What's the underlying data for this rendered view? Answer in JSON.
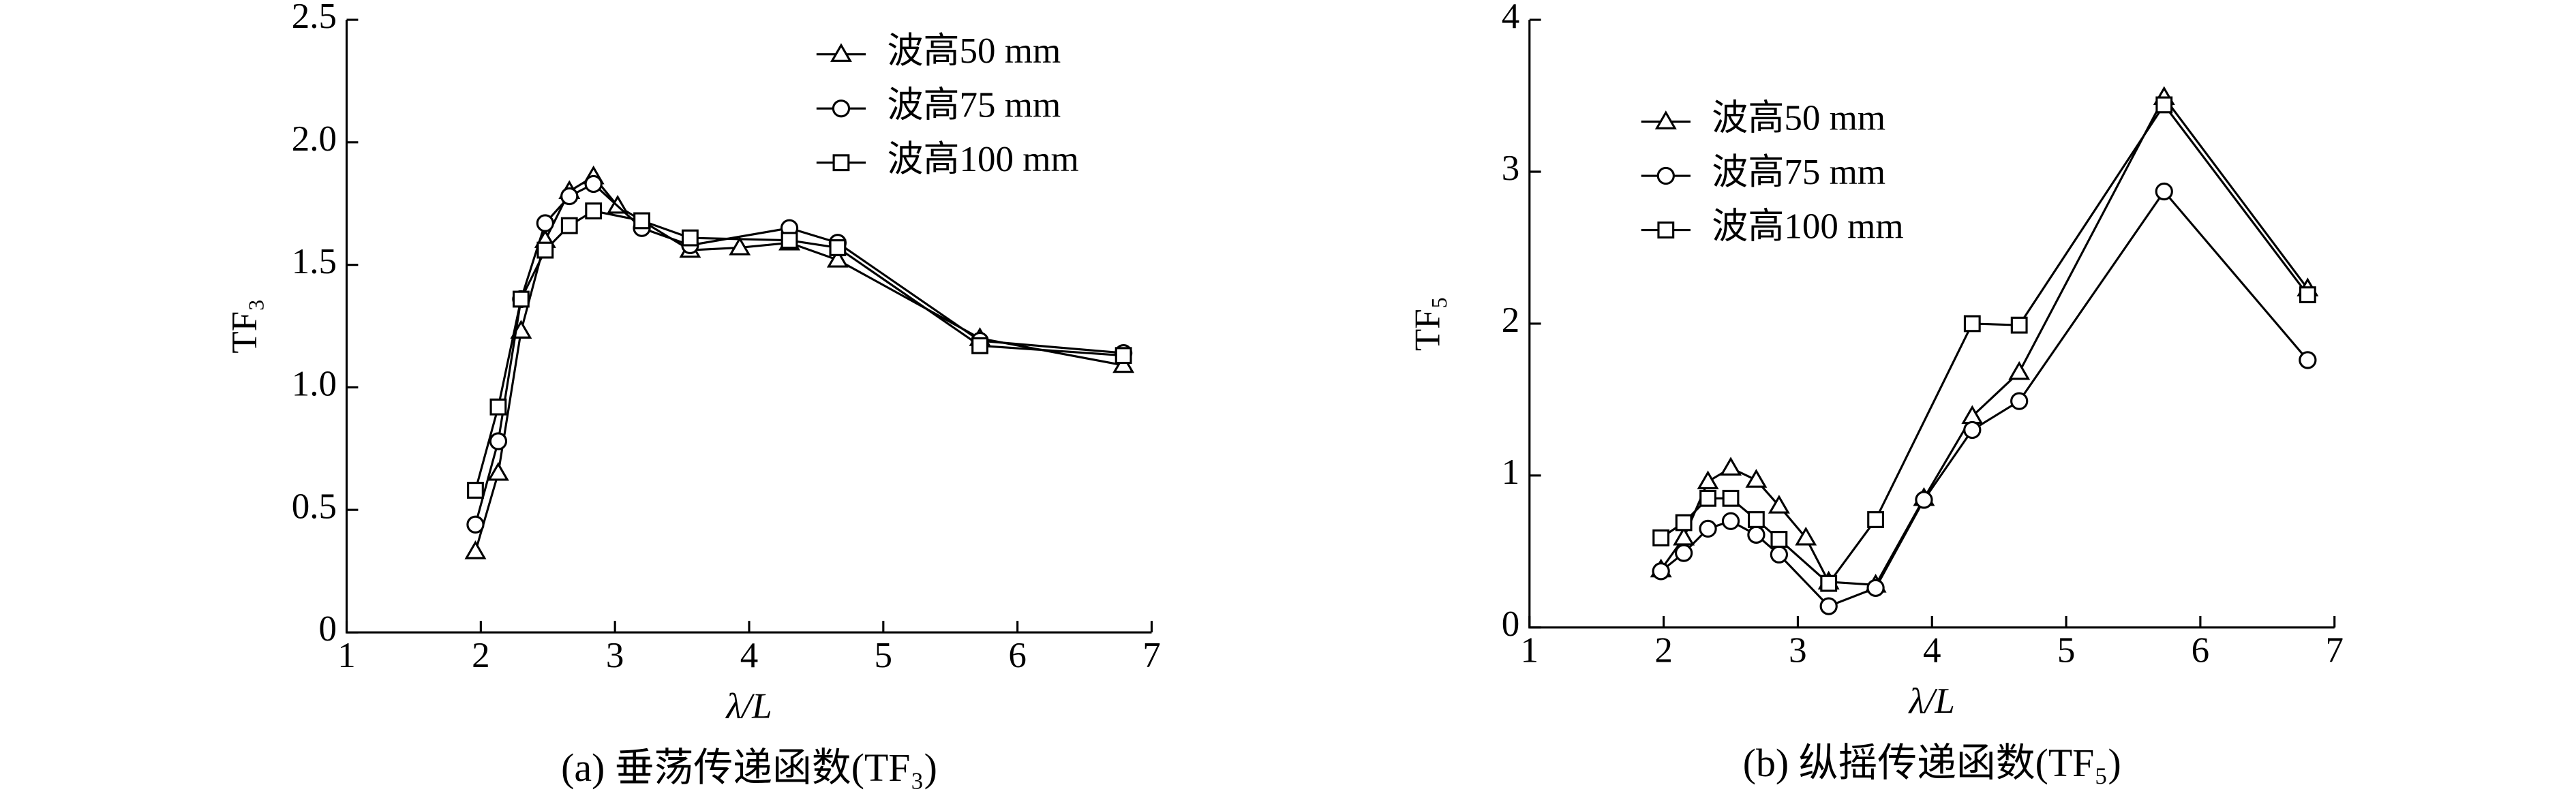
{
  "chart_data": [
    {
      "type": "line",
      "title": "(a) 垂荡传递函数(TF₃)",
      "xlabel": "λ/L",
      "ylabel": "TF₃",
      "xlim": [
        1,
        7
      ],
      "ylim": [
        0,
        2.5
      ],
      "xticks": [
        1,
        2,
        3,
        4,
        5,
        6,
        7
      ],
      "yticks": [
        0,
        0.5,
        {
          "value": 1,
          "label": "1.0"
        },
        1.5,
        {
          "value": 2,
          "label": "2.0"
        },
        2.5
      ],
      "legend": "upper right",
      "series": [
        {
          "name": "波高50 mm",
          "marker": "triangle",
          "color": "#000000",
          "x": [
            1.96,
            2.13,
            2.3,
            2.48,
            2.66,
            2.84,
            3.02,
            3.56,
            3.93,
            4.3,
            4.66,
            5.72,
            6.79
          ],
          "values": [
            0.33,
            0.65,
            1.23,
            1.6,
            1.8,
            1.86,
            1.74,
            1.56,
            1.57,
            1.59,
            1.52,
            1.2,
            1.09
          ]
        },
        {
          "name": "波高75 mm",
          "marker": "circle",
          "color": "#000000",
          "x": [
            1.96,
            2.13,
            2.3,
            2.48,
            2.66,
            2.84,
            3.2,
            3.56,
            4.3,
            4.66,
            5.72,
            6.79
          ],
          "values": [
            0.44,
            0.78,
            1.36,
            1.67,
            1.78,
            1.83,
            1.65,
            1.58,
            1.65,
            1.59,
            1.19,
            1.14
          ]
        },
        {
          "name": "波高100 mm",
          "marker": "square",
          "color": "#000000",
          "x": [
            1.96,
            2.13,
            2.3,
            2.48,
            2.66,
            2.84,
            3.2,
            3.56,
            4.3,
            4.66,
            5.72,
            6.79
          ],
          "values": [
            0.58,
            0.92,
            1.36,
            1.56,
            1.66,
            1.72,
            1.68,
            1.61,
            1.6,
            1.57,
            1.17,
            1.13
          ]
        }
      ]
    },
    {
      "type": "line",
      "title": "(b) 纵摇传递函数(TF₅)",
      "xlabel": "λ/L",
      "ylabel": "TF₅",
      "xlim": [
        1,
        7
      ],
      "ylim": [
        0,
        4
      ],
      "xticks": [
        1,
        2,
        3,
        4,
        5,
        6,
        7
      ],
      "yticks": [
        0,
        1,
        2,
        3,
        4
      ],
      "legend": "upper left",
      "series": [
        {
          "name": "波高50 mm",
          "marker": "triangle",
          "color": "#000000",
          "x": [
            1.98,
            2.15,
            2.33,
            2.5,
            2.69,
            2.86,
            3.06,
            3.23,
            3.58,
            3.94,
            4.3,
            4.65,
            5.73,
            6.8
          ],
          "values": [
            0.38,
            0.59,
            0.96,
            1.05,
            0.97,
            0.8,
            0.59,
            0.3,
            0.28,
            0.85,
            1.39,
            1.68,
            3.49,
            2.23
          ]
        },
        {
          "name": "波高75 mm",
          "marker": "circle",
          "color": "#000000",
          "x": [
            1.98,
            2.15,
            2.33,
            2.5,
            2.69,
            2.86,
            3.23,
            3.58,
            3.94,
            4.3,
            4.65,
            5.73,
            6.8
          ],
          "values": [
            0.37,
            0.49,
            0.65,
            0.7,
            0.61,
            0.48,
            0.14,
            0.26,
            0.84,
            1.3,
            1.49,
            2.87,
            1.76
          ]
        },
        {
          "name": "波高100 mm",
          "marker": "square",
          "color": "#000000",
          "x": [
            1.98,
            2.15,
            2.33,
            2.5,
            2.69,
            2.86,
            3.23,
            3.58,
            4.3,
            4.65,
            5.73,
            6.8
          ],
          "values": [
            0.59,
            0.69,
            0.85,
            0.85,
            0.71,
            0.58,
            0.29,
            0.71,
            2.0,
            1.99,
            3.44,
            2.19
          ]
        }
      ]
    }
  ]
}
